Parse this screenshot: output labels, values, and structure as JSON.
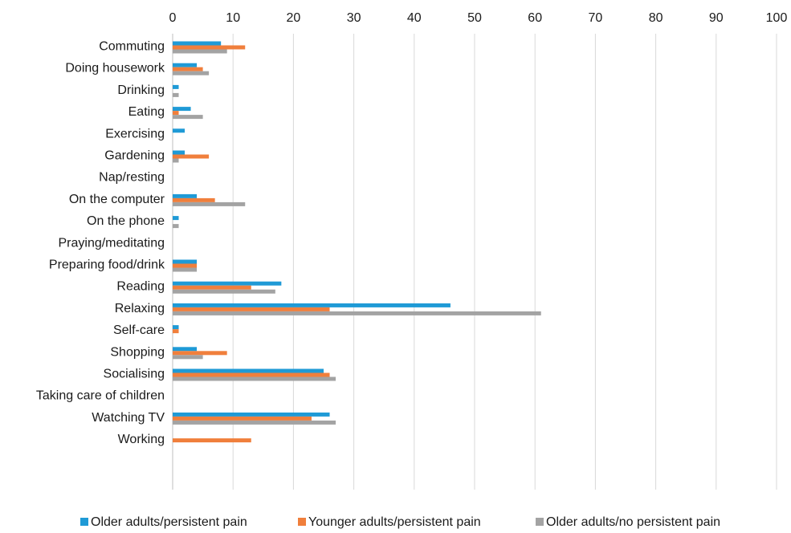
{
  "chart_data": {
    "type": "bar",
    "orientation": "horizontal",
    "title": "",
    "xlabel": "",
    "ylabel": "",
    "xlim": [
      0,
      100
    ],
    "x_ticks": [
      0,
      10,
      20,
      30,
      40,
      50,
      60,
      70,
      80,
      90,
      100
    ],
    "x_axis_position": "top",
    "grid": true,
    "legend_position": "bottom",
    "categories": [
      "Commuting",
      "Doing housework",
      "Drinking",
      "Eating",
      "Exercising",
      "Gardening",
      "Nap/resting",
      "On the computer",
      "On the phone",
      "Praying/meditating",
      "Preparing food/drink",
      "Reading",
      "Relaxing",
      "Self-care",
      "Shopping",
      "Socialising",
      "Taking care of children",
      "Watching TV",
      "Working"
    ],
    "series": [
      {
        "name": "Older adults/persistent pain",
        "color": "#1f9ad6",
        "values": [
          8,
          4,
          1,
          3,
          2,
          2,
          0,
          4,
          1,
          0,
          4,
          18,
          46,
          1,
          4,
          25,
          0,
          26,
          0
        ]
      },
      {
        "name": "Younger adults/persistent pain",
        "color": "#f07f3c",
        "values": [
          12,
          5,
          0,
          1,
          0,
          6,
          0,
          7,
          0,
          0,
          4,
          13,
          26,
          1,
          9,
          26,
          0,
          23,
          13
        ]
      },
      {
        "name": "Older adults/no persistent pain",
        "color": "#a3a3a3",
        "values": [
          9,
          6,
          1,
          5,
          0,
          1,
          0,
          12,
          1,
          0,
          4,
          17,
          61,
          0,
          5,
          27,
          0,
          27,
          0
        ]
      }
    ]
  }
}
